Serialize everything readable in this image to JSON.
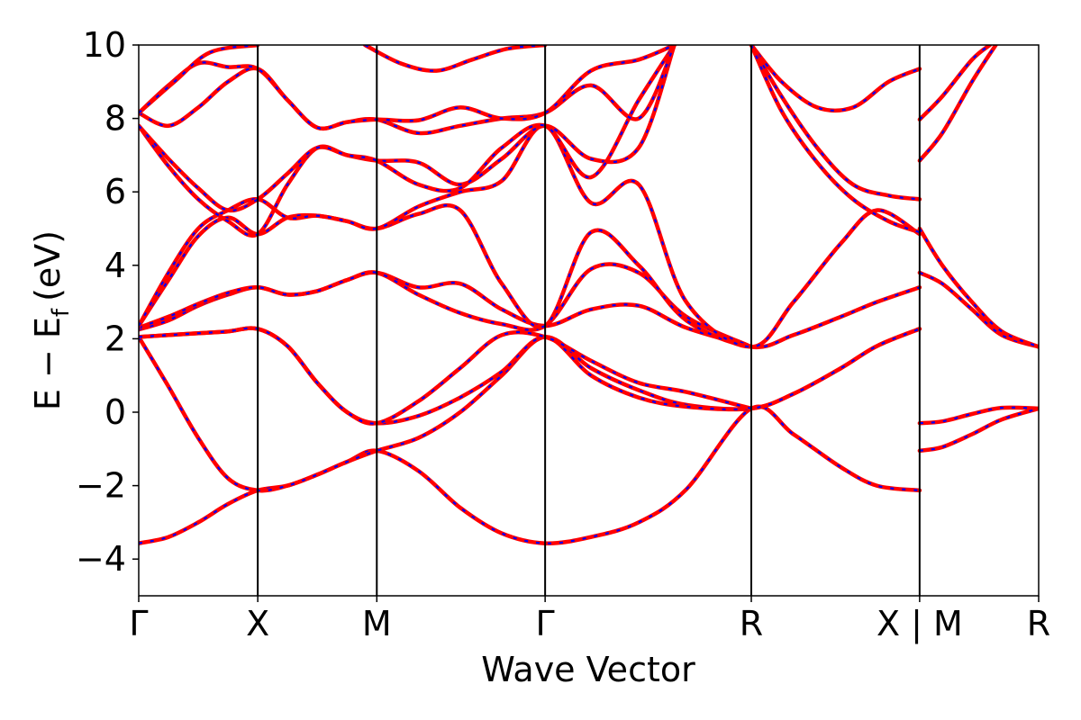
{
  "chart_data": {
    "type": "line",
    "title": "",
    "xlabel": "Wave Vector",
    "ylabel_main": "E − E",
    "ylabel_sub": "f",
    "ylabel_unit": "(eV)",
    "ylim": [
      -5,
      10
    ],
    "yticks": [
      {
        "value": -4,
        "label": "−4"
      },
      {
        "value": -2,
        "label": "−2"
      },
      {
        "value": 0,
        "label": "0"
      },
      {
        "value": 2,
        "label": "2"
      },
      {
        "value": 4,
        "label": "4"
      },
      {
        "value": 6,
        "label": "6"
      },
      {
        "value": 8,
        "label": "8"
      },
      {
        "value": 10,
        "label": "10"
      }
    ],
    "kpoints": [
      {
        "k": 0.0,
        "label": "Γ"
      },
      {
        "k": 1.0,
        "label": "X"
      },
      {
        "k": 2.0,
        "label": "M"
      },
      {
        "k": 3.414,
        "label": "Γ"
      },
      {
        "k": 5.146,
        "label": "R"
      },
      {
        "k": 6.56,
        "label": "X | M"
      },
      {
        "k": 7.56,
        "label": "R"
      }
    ],
    "grid": false,
    "legend": "none",
    "line_colors": {
      "band": "#ff0000",
      "overlay": "#0000ff"
    },
    "series": [
      {
        "x": [
          0,
          0.25,
          0.5,
          0.75,
          1.0,
          1.25,
          1.5,
          1.75,
          2.0,
          2.35,
          2.7,
          3.05,
          3.414,
          3.8,
          4.2,
          4.6,
          5.146,
          5.5,
          5.9,
          6.2,
          6.56
        ],
        "values": [
          -3.57,
          -3.4,
          -3.0,
          -2.5,
          -2.13,
          -2.0,
          -1.7,
          -1.35,
          -1.05,
          -1.6,
          -2.6,
          -3.3,
          -3.57,
          -3.4,
          -3.0,
          -2.1,
          0.1,
          -0.6,
          -1.5,
          -2.0,
          -2.13
        ]
      },
      {
        "x": [
          0,
          0.25,
          0.5,
          0.75,
          1.0,
          1.25,
          1.5,
          1.75,
          2.0,
          2.35,
          2.7,
          3.05,
          3.414,
          3.8,
          4.2,
          4.6,
          5.146,
          5.5,
          5.9,
          6.2,
          6.56
        ],
        "values": [
          2.05,
          0.7,
          -0.7,
          -1.8,
          -2.13,
          -2.0,
          -1.7,
          -1.35,
          -1.05,
          -0.7,
          0.0,
          1.0,
          2.05,
          1.2,
          0.6,
          0.2,
          0.1,
          0.5,
          1.2,
          1.8,
          2.27
        ]
      },
      {
        "x": [
          0,
          0.25,
          0.5,
          0.75,
          1.0,
          1.25,
          1.5,
          1.75,
          2.0,
          2.35,
          2.7,
          3.05,
          3.414,
          3.8,
          4.2,
          4.6,
          5.146,
          5.5,
          5.9,
          6.2,
          6.56
        ],
        "values": [
          2.05,
          2.1,
          2.15,
          2.2,
          2.27,
          1.8,
          0.8,
          0.0,
          -0.3,
          -0.1,
          0.4,
          1.1,
          2.05,
          1.0,
          0.4,
          0.15,
          0.1,
          0.5,
          1.2,
          1.8,
          2.27
        ]
      },
      {
        "x": [
          0,
          0.25,
          0.5,
          0.75,
          1.0,
          1.25,
          1.5,
          1.75,
          2.0,
          2.35,
          2.7,
          3.05,
          3.414,
          3.8,
          4.2,
          4.6,
          5.146
        ],
        "values": [
          2.05,
          2.1,
          2.15,
          2.2,
          2.27,
          1.8,
          0.8,
          0.0,
          -0.3,
          0.3,
          1.2,
          2.1,
          2.05,
          1.4,
          0.8,
          0.55,
          0.1
        ]
      },
      {
        "x": [
          0,
          0.25,
          0.5,
          0.75,
          1.0,
          1.25,
          1.5,
          1.75,
          2.0,
          2.35,
          2.7,
          3.05,
          3.414,
          3.8,
          4.2,
          4.6,
          5.146
        ],
        "values": [
          2.25,
          2.5,
          2.9,
          3.2,
          3.4,
          3.2,
          3.3,
          3.6,
          3.8,
          3.4,
          3.5,
          2.8,
          2.35,
          2.8,
          2.9,
          2.3,
          1.78
        ]
      },
      {
        "x": [
          0,
          0.25,
          0.5,
          0.75,
          1.0,
          1.25,
          1.5,
          1.75,
          2.0,
          2.35,
          2.7,
          3.05,
          3.414,
          3.8,
          4.2,
          4.6,
          5.146
        ],
        "values": [
          2.3,
          2.6,
          2.95,
          3.25,
          3.4,
          3.2,
          3.3,
          3.6,
          3.8,
          3.2,
          2.7,
          2.4,
          2.35,
          3.9,
          3.8,
          2.6,
          1.78
        ]
      },
      {
        "x": [
          0,
          0.25,
          0.5,
          0.75,
          1.0,
          1.25,
          1.5,
          1.75,
          2.0,
          2.35,
          2.7,
          3.05,
          3.414,
          3.8,
          4.2,
          4.6,
          5.146,
          5.5,
          5.9,
          6.2,
          6.56
        ],
        "values": [
          2.35,
          3.6,
          4.8,
          5.3,
          4.85,
          5.3,
          5.35,
          5.2,
          5.0,
          5.4,
          5.5,
          3.5,
          2.35,
          4.9,
          4.0,
          2.5,
          1.78,
          2.1,
          2.6,
          3.0,
          3.4
        ]
      },
      {
        "x": [
          0,
          0.25,
          0.5,
          0.75,
          1.0,
          1.25,
          1.5,
          1.75,
          2.0,
          2.35,
          2.7,
          3.05,
          3.414,
          3.8,
          4.2,
          4.6,
          5.146,
          5.5,
          5.9,
          6.2,
          6.56
        ],
        "values": [
          2.35,
          3.8,
          5.0,
          5.5,
          5.8,
          5.3,
          5.35,
          5.2,
          5.0,
          5.6,
          6.0,
          6.3,
          7.8,
          5.7,
          6.2,
          3.0,
          1.78,
          3.0,
          4.6,
          5.5,
          4.85
        ]
      },
      {
        "x": [
          0,
          0.25,
          0.5,
          0.75,
          1.0,
          1.25,
          1.5,
          1.75,
          2.0,
          2.35,
          2.7,
          3.05,
          3.414,
          3.8,
          4.2,
          4.5
        ],
        "values": [
          7.8,
          6.7,
          5.8,
          5.2,
          4.85,
          6.2,
          7.2,
          7.0,
          6.85,
          6.8,
          6.2,
          6.9,
          7.8,
          6.9,
          7.2,
          10.0
        ]
      },
      {
        "x": [
          0,
          0.25,
          0.5,
          0.75,
          1.0,
          1.25,
          1.5,
          1.75,
          2.0,
          2.35,
          2.7,
          3.05,
          3.414,
          3.8,
          4.2,
          4.5
        ],
        "values": [
          7.8,
          6.9,
          6.1,
          5.5,
          5.8,
          6.5,
          7.2,
          7.0,
          6.85,
          6.2,
          6.1,
          7.2,
          7.8,
          6.4,
          8.5,
          10.0
        ]
      },
      {
        "x": [
          0,
          0.25,
          0.5,
          0.75,
          1.0,
          1.25,
          1.5,
          1.75,
          2.0,
          2.35,
          2.7,
          3.05,
          3.414,
          3.8,
          4.2,
          4.5
        ],
        "values": [
          8.15,
          7.8,
          8.3,
          9.0,
          9.35,
          8.5,
          7.75,
          7.9,
          7.97,
          7.6,
          7.8,
          8.0,
          8.15,
          8.9,
          8.0,
          10.0
        ]
      },
      {
        "x": [
          0,
          0.25,
          0.5,
          0.75,
          1.0,
          1.25,
          1.5,
          1.75,
          2.0,
          2.35,
          2.7,
          3.05,
          3.414,
          3.8,
          4.2,
          4.5
        ],
        "values": [
          8.15,
          8.9,
          9.5,
          9.4,
          9.35,
          8.5,
          7.75,
          7.9,
          7.97,
          7.95,
          8.3,
          8.0,
          8.15,
          9.3,
          9.6,
          10.0
        ]
      },
      {
        "x": [
          0,
          0.3,
          0.6,
          1.0
        ],
        "values": [
          8.15,
          9.0,
          9.8,
          10.0
        ]
      },
      {
        "x": [
          1.9,
          2.2,
          2.5,
          2.8,
          3.1,
          3.414
        ],
        "values": [
          10.0,
          9.5,
          9.3,
          9.6,
          9.9,
          10.0
        ]
      },
      {
        "x": [
          5.146,
          5.4,
          5.7,
          6.0,
          6.3,
          6.56
        ],
        "values": [
          10.0,
          9.0,
          8.3,
          8.3,
          9.0,
          9.35
        ]
      },
      {
        "x": [
          5.146,
          5.4,
          5.7,
          6.0,
          6.3,
          6.56
        ],
        "values": [
          10.0,
          8.6,
          7.2,
          6.2,
          5.9,
          5.8
        ]
      },
      {
        "x": [
          5.146,
          5.4,
          5.7,
          6.0,
          6.3,
          6.56
        ],
        "values": [
          10.0,
          8.2,
          6.8,
          5.8,
          5.2,
          4.9
        ]
      },
      {
        "x": [
          6.56,
          6.75,
          7.0,
          7.25,
          7.56
        ],
        "values": [
          -0.3,
          -0.25,
          -0.05,
          0.12,
          0.1
        ]
      },
      {
        "x": [
          6.56,
          6.75,
          7.0,
          7.25,
          7.56
        ],
        "values": [
          -1.05,
          -0.95,
          -0.6,
          -0.2,
          0.1
        ]
      },
      {
        "x": [
          6.56,
          6.75,
          7.0,
          7.25,
          7.56
        ],
        "values": [
          3.8,
          3.5,
          2.8,
          2.1,
          1.78
        ]
      },
      {
        "x": [
          6.56,
          6.75,
          7.0,
          7.25,
          7.56
        ],
        "values": [
          5.0,
          4.0,
          3.0,
          2.2,
          1.78
        ]
      },
      {
        "x": [
          6.56,
          6.75,
          7.0,
          7.2
        ],
        "values": [
          6.85,
          7.6,
          9.0,
          10.0
        ]
      },
      {
        "x": [
          6.56,
          6.75,
          7.0,
          7.15
        ],
        "values": [
          7.97,
          8.6,
          9.6,
          10.0
        ]
      }
    ]
  }
}
